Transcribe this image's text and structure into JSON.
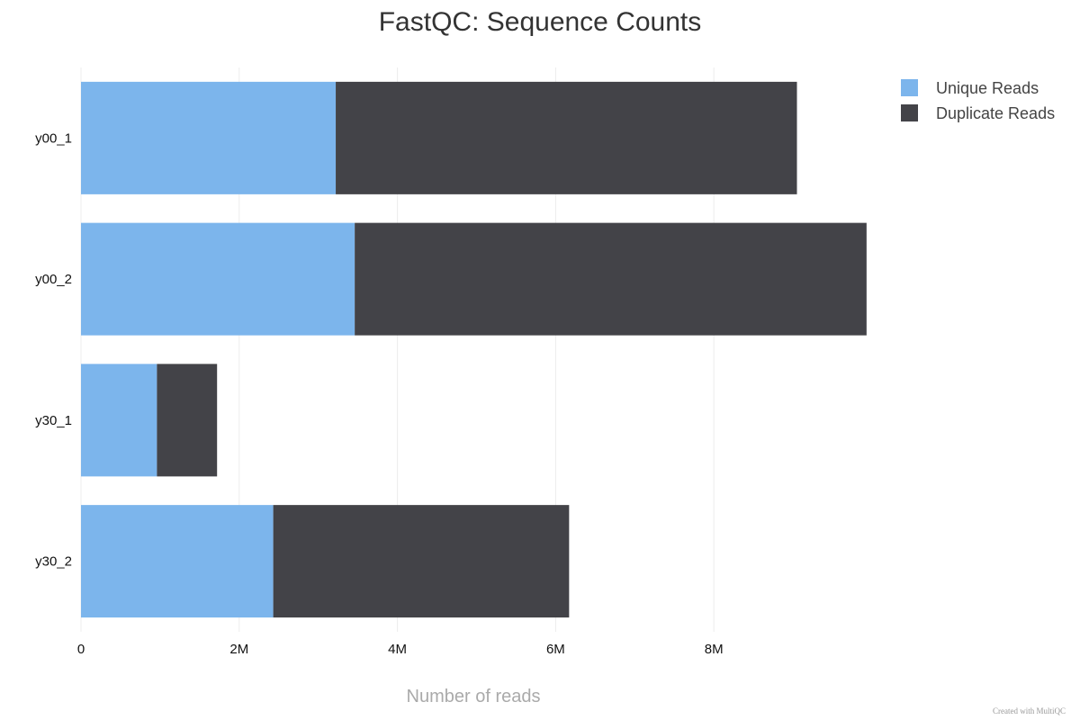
{
  "chart_data": {
    "type": "bar",
    "orientation": "horizontal",
    "stacked": true,
    "title": "FastQC: Sequence Counts",
    "xlabel": "Number of reads",
    "ylabel": "",
    "categories": [
      "y00_1",
      "y00_2",
      "y30_1",
      "y30_2"
    ],
    "series": [
      {
        "name": "Unique Reads",
        "color": "#7cb5ec",
        "values": [
          3220000,
          3460000,
          960000,
          2430000
        ]
      },
      {
        "name": "Duplicate Reads",
        "color": "#434348",
        "values": [
          5830000,
          6470000,
          760000,
          3740000
        ]
      }
    ],
    "xlim": [
      0,
      10000000
    ],
    "xticks": [
      {
        "value": 0,
        "label": "0"
      },
      {
        "value": 2000000,
        "label": "2M"
      },
      {
        "value": 4000000,
        "label": "4M"
      },
      {
        "value": 6000000,
        "label": "6M"
      },
      {
        "value": 8000000,
        "label": "8M"
      }
    ],
    "grid": true,
    "legend_position": "top-right"
  },
  "credit": "Created with MultiQC"
}
